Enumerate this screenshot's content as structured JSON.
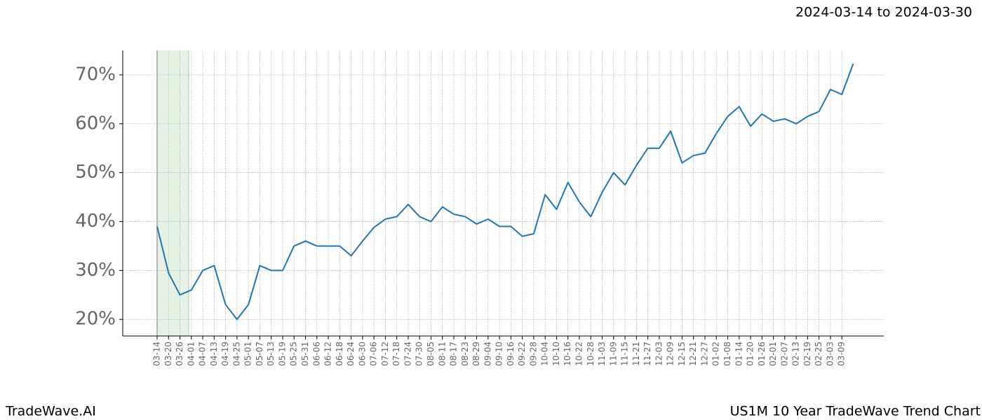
{
  "header": {
    "date_range": "2024-03-14 to 2024-03-30"
  },
  "footer": {
    "brand": "TradeWave.AI",
    "chart_name": "US1M 10 Year TradeWave Trend Chart"
  },
  "chart_data": {
    "type": "line",
    "categories": [
      "03-14",
      "03-20",
      "03-26",
      "04-01",
      "04-07",
      "04-13",
      "04-19",
      "04-25",
      "05-01",
      "05-07",
      "05-13",
      "05-19",
      "05-25",
      "05-31",
      "06-06",
      "06-12",
      "06-18",
      "06-24",
      "06-30",
      "07-06",
      "07-12",
      "07-18",
      "07-24",
      "07-30",
      "08-05",
      "08-11",
      "08-17",
      "08-23",
      "08-29",
      "09-04",
      "09-10",
      "09-16",
      "09-22",
      "09-28",
      "10-04",
      "10-10",
      "10-16",
      "10-22",
      "10-28",
      "11-03",
      "11-09",
      "11-15",
      "11-21",
      "11-27",
      "12-03",
      "12-09",
      "12-15",
      "12-21",
      "12-27",
      "01-02",
      "01-08",
      "01-14",
      "01-20",
      "01-26",
      "02-01",
      "02-07",
      "02-13",
      "02-19",
      "02-25",
      "03-03",
      "03-09",
      null
    ],
    "series": [
      {
        "color": "#1f77b4",
        "values": [
          39,
          29.5,
          25,
          26,
          30,
          31,
          23,
          20,
          23,
          31,
          30,
          30,
          35,
          36,
          35,
          35,
          35,
          33,
          36,
          38.8,
          40.5,
          41,
          43.5,
          41,
          40,
          43,
          41.5,
          41,
          39.5,
          40.5,
          39,
          39,
          37,
          37.5,
          45.5,
          42.5,
          48,
          44,
          41,
          46,
          50,
          47.5,
          51.5,
          55,
          55,
          58.5,
          52,
          53.5,
          54,
          58,
          61.5,
          63.5,
          59.5,
          62,
          60.5,
          61,
          60,
          61.5,
          62.5,
          67,
          66,
          72.3
        ]
      }
    ],
    "ylim": [
      16.6,
      75
    ],
    "yticks": [
      {
        "value": 20,
        "label": "20%"
      },
      {
        "value": 30,
        "label": "30%"
      },
      {
        "value": 40,
        "label": "40%"
      },
      {
        "value": 50,
        "label": "50%"
      },
      {
        "value": 60,
        "label": "60%"
      },
      {
        "value": 70,
        "label": "70%"
      }
    ],
    "grid": true
  }
}
